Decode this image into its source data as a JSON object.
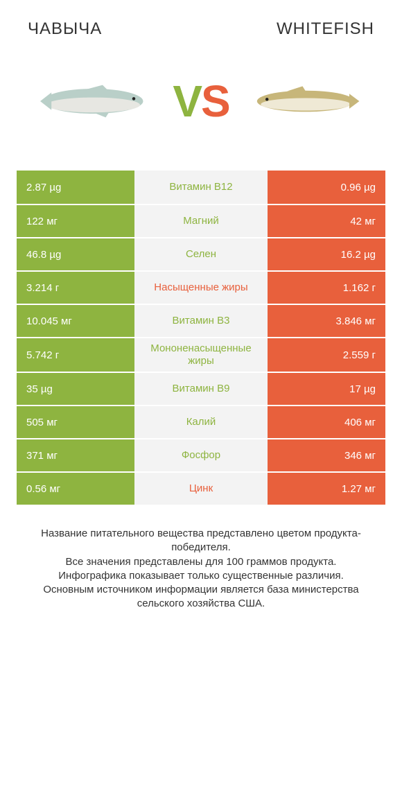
{
  "colors": {
    "green": "#8eb440",
    "orange": "#e8603c",
    "mid_bg": "#f3f3f3",
    "label_green": "#8eb440",
    "label_orange": "#e8603c",
    "vs_green": "#8eb440",
    "vs_orange": "#e8603c"
  },
  "header": {
    "left": "ЧАВЫЧА",
    "right": "WHITEFISH"
  },
  "vs": {
    "v": "V",
    "s": "S"
  },
  "fish": {
    "left": {
      "name": "chinook-salmon",
      "body": "#b9cfc8",
      "belly": "#e7e7e2",
      "eye": "#222"
    },
    "right": {
      "name": "whitefish",
      "body": "#c7b67a",
      "belly": "#efe9d5",
      "eye": "#222"
    }
  },
  "rows": [
    {
      "left": "2.87 µg",
      "label": "Витамин B12",
      "right": "0.96 µg",
      "winner": "left"
    },
    {
      "left": "122 мг",
      "label": "Магний",
      "right": "42 мг",
      "winner": "left"
    },
    {
      "left": "46.8 µg",
      "label": "Селен",
      "right": "16.2 µg",
      "winner": "left"
    },
    {
      "left": "3.214 г",
      "label": "Насыщенные жиры",
      "right": "1.162 г",
      "winner": "right"
    },
    {
      "left": "10.045 мг",
      "label": "Витамин B3",
      "right": "3.846 мг",
      "winner": "left"
    },
    {
      "left": "5.742 г",
      "label": "Мононенасыщенные жиры",
      "right": "2.559 г",
      "winner": "left"
    },
    {
      "left": "35 µg",
      "label": "Витамин B9",
      "right": "17 µg",
      "winner": "left"
    },
    {
      "left": "505 мг",
      "label": "Калий",
      "right": "406 мг",
      "winner": "left"
    },
    {
      "left": "371 мг",
      "label": "Фосфор",
      "right": "346 мг",
      "winner": "left"
    },
    {
      "left": "0.56 мг",
      "label": "Цинк",
      "right": "1.27 мг",
      "winner": "right"
    }
  ],
  "footnote": "Название питательного вещества представлено цветом продукта-победителя.\nВсе значения представлены для 100 граммов продукта.\nИнфографика показывает только существенные различия.\nОсновным источником информации является база министерства сельского хозяйства США."
}
